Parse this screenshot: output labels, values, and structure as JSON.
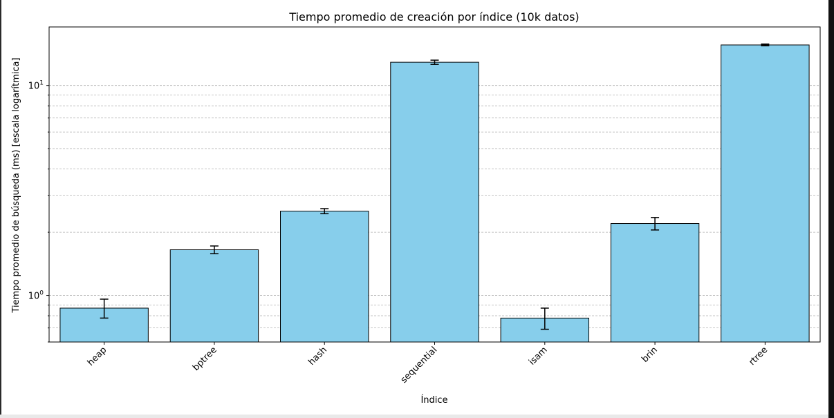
{
  "chart_data": {
    "type": "bar",
    "title": "Tiempo promedio de creación por índice (10k datos)",
    "xlabel": "Índice",
    "ylabel": "Tiempo promedio de búsqueda (ms) [escala logarítmica]",
    "yscale": "log",
    "ylim": [
      0.6,
      19
    ],
    "grid": "y, major and minor, dashed",
    "categories": [
      "heap",
      "bptree",
      "hash",
      "sequential",
      "isam",
      "brin",
      "rtree"
    ],
    "values": [
      0.87,
      1.65,
      2.52,
      12.9,
      0.78,
      2.2,
      15.6
    ],
    "error": [
      0.09,
      0.07,
      0.07,
      0.3,
      0.09,
      0.15,
      0.15
    ],
    "colors": {
      "bar_fill": "#87ceeb",
      "bar_edge": "#000000",
      "grid": "#b0b0b0"
    }
  }
}
